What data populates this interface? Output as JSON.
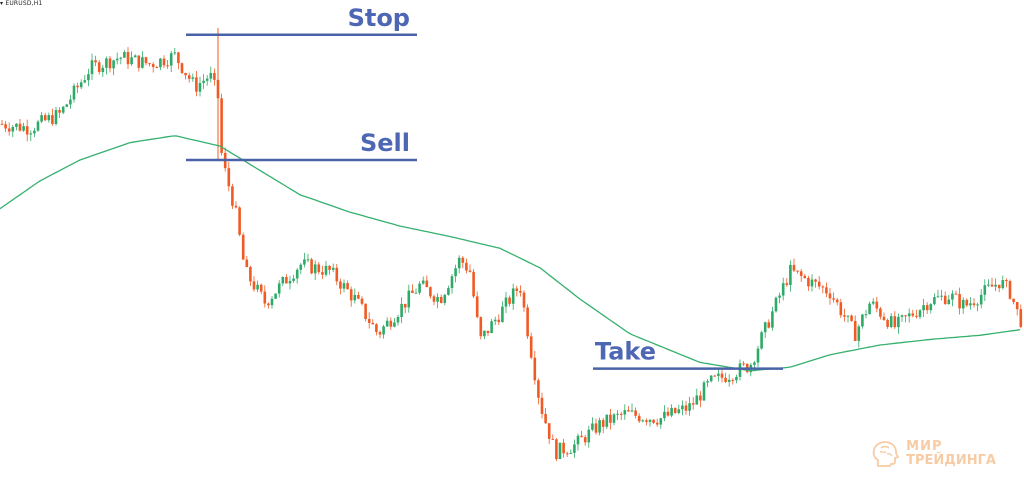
{
  "symbol": "EURUSD,H1",
  "watermark": {
    "line1": "МИР",
    "line2": "ТРЕЙДИНГА"
  },
  "colors": {
    "bull": "#2eaa68",
    "bear": "#f05a24",
    "ma": "#35b06d",
    "level": "#4a63a8",
    "label": "#4e67b4",
    "watermark": "#f2a25a"
  },
  "chart_data": {
    "type": "candlestick",
    "levels": [
      {
        "name": "stop",
        "label": "Stop",
        "price": 1.22
      },
      {
        "name": "sell",
        "label": "Sell",
        "price": 1.202
      },
      {
        "name": "take",
        "label": "Take",
        "price": 1.172
      }
    ],
    "ma_series": [
      1.195,
      1.199,
      1.202,
      1.2045,
      1.2055,
      1.204,
      1.2005,
      1.197,
      1.1945,
      1.1925,
      1.191,
      1.1893,
      1.1865,
      1.182,
      1.177,
      1.1729,
      1.1717,
      1.1722,
      1.174,
      1.1754,
      1.1762,
      1.1768,
      1.1776
    ],
    "ma_x": [
      0,
      40,
      80,
      130,
      175,
      220,
      260,
      300,
      350,
      400,
      450,
      500,
      540,
      580,
      630,
      700,
      750,
      790,
      830,
      880,
      930,
      980,
      1020
    ],
    "close_path": [
      1.2072,
      1.2066,
      1.2086,
      1.2152,
      1.2168,
      1.2158,
      1.217,
      1.2125,
      1.2142,
      1.211,
      1.202,
      1.195,
      1.186,
      1.1815,
      1.187,
      1.186,
      1.182,
      1.177,
      1.184,
      1.182,
      1.1878,
      1.186,
      1.176,
      1.184,
      1.167,
      1.16,
      1.161,
      1.164,
      1.1655,
      1.1648,
      1.1665,
      1.17,
      1.1725,
      1.186,
      1.1845,
      1.183,
      1.177,
      1.1815,
      1.178,
      1.1818,
      1.1825,
      1.181,
      1.1846,
      1.183,
      1.179
    ],
    "close_path_x": [
      0,
      30,
      60,
      90,
      120,
      150,
      175,
      195,
      210,
      218,
      222,
      235,
      245,
      265,
      300,
      330,
      355,
      378,
      420,
      440,
      460,
      470,
      480,
      520,
      540,
      555,
      575,
      600,
      625,
      660,
      690,
      710,
      750,
      790,
      810,
      830,
      855,
      870,
      895,
      930,
      950,
      965,
      1000,
      1010,
      1020
    ]
  }
}
